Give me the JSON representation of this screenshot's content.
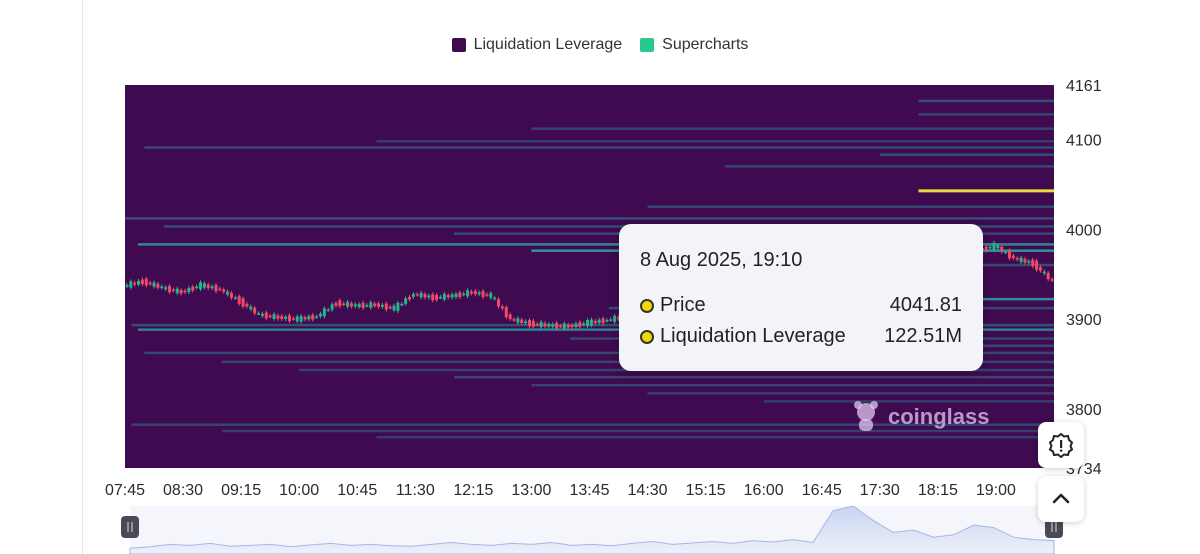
{
  "legend": [
    {
      "label": "Liquidation Leverage",
      "color": "#3f0a4f"
    },
    {
      "label": "Supercharts",
      "color": "#27c98c"
    }
  ],
  "tooltip": {
    "title": "8 Aug 2025, 19:10",
    "rows": [
      {
        "label": "Price",
        "value": "4041.81"
      },
      {
        "label": "Liquidation Leverage",
        "value": "122.51M"
      }
    ]
  },
  "watermark": "coinglass",
  "chart_data": {
    "type": "heatmap",
    "title": "",
    "ylim": [
      3734,
      4161
    ],
    "y_ticks": [
      "4161",
      "4100",
      "4000",
      "3900",
      "3800",
      "3734"
    ],
    "y_tick_values": [
      4161,
      4100,
      4000,
      3900,
      3800,
      3734
    ],
    "x_ticks": [
      "07:45",
      "08:30",
      "09:15",
      "10:00",
      "10:45",
      "11:30",
      "12:15",
      "13:00",
      "13:45",
      "14:30",
      "15:15",
      "16:00",
      "16:45",
      "17:30",
      "18:15",
      "19:00"
    ],
    "x_start": "07:45",
    "x_end": "19:45",
    "legend_position": "top-center",
    "colors": {
      "background": "#3f0a4f",
      "low": "#2f6e8c",
      "mid": "#2aa6a0",
      "high": "#f5e43a",
      "candle_up": "#26b58a",
      "candle_down": "#ef4a66"
    },
    "liquidation_levels": [
      {
        "price": 4143,
        "start": "18:00",
        "intensity": 0.6
      },
      {
        "price": 4128,
        "start": "18:00",
        "intensity": 0.4
      },
      {
        "price": 4112,
        "start": "13:00",
        "intensity": 0.35
      },
      {
        "price": 4098,
        "start": "11:00",
        "intensity": 0.3
      },
      {
        "price": 4091,
        "start": "08:00",
        "intensity": 0.5
      },
      {
        "price": 4083,
        "start": "17:30",
        "intensity": 0.55
      },
      {
        "price": 4070,
        "start": "15:30",
        "intensity": 0.4
      },
      {
        "price": 4043,
        "start": "18:00",
        "intensity": 1.0
      },
      {
        "price": 4025,
        "start": "14:30",
        "intensity": 0.4
      },
      {
        "price": 4012,
        "start": "07:45",
        "intensity": 0.55
      },
      {
        "price": 4003,
        "start": "08:15",
        "intensity": 0.5
      },
      {
        "price": 3995,
        "start": "12:00",
        "intensity": 0.45
      },
      {
        "price": 3983,
        "start": "07:55",
        "intensity": 0.75
      },
      {
        "price": 3976,
        "start": "13:00",
        "intensity": 0.9
      },
      {
        "price": 3960,
        "start": "16:00",
        "intensity": 0.5
      },
      {
        "price": 3922,
        "start": "17:40",
        "intensity": 0.85
      },
      {
        "price": 3912,
        "start": "14:00",
        "intensity": 0.5
      },
      {
        "price": 3893,
        "start": "07:50",
        "intensity": 0.55
      },
      {
        "price": 3888,
        "start": "07:55",
        "intensity": 0.7
      },
      {
        "price": 3878,
        "start": "13:30",
        "intensity": 0.4
      },
      {
        "price": 3870,
        "start": "16:00",
        "intensity": 0.45
      },
      {
        "price": 3862,
        "start": "08:00",
        "intensity": 0.45
      },
      {
        "price": 3852,
        "start": "09:00",
        "intensity": 0.4
      },
      {
        "price": 3843,
        "start": "10:00",
        "intensity": 0.35
      },
      {
        "price": 3835,
        "start": "12:00",
        "intensity": 0.4
      },
      {
        "price": 3826,
        "start": "13:00",
        "intensity": 0.35
      },
      {
        "price": 3817,
        "start": "14:30",
        "intensity": 0.3
      },
      {
        "price": 3808,
        "start": "16:00",
        "intensity": 0.3
      },
      {
        "price": 3782,
        "start": "07:50",
        "intensity": 0.4
      },
      {
        "price": 3775,
        "start": "09:00",
        "intensity": 0.3
      },
      {
        "price": 3768,
        "start": "11:00",
        "intensity": 0.25
      }
    ],
    "price_series": {
      "times": [
        "07:45",
        "08:00",
        "08:15",
        "08:30",
        "08:45",
        "09:00",
        "09:15",
        "09:30",
        "09:45",
        "10:00",
        "10:15",
        "10:30",
        "10:45",
        "11:00",
        "11:15",
        "11:30",
        "11:45",
        "12:00",
        "12:15",
        "12:30",
        "12:45",
        "13:00",
        "13:15",
        "13:30",
        "13:45",
        "14:00",
        "14:15",
        "18:30",
        "18:45",
        "19:00",
        "19:15",
        "19:30",
        "19:45"
      ],
      "prices": [
        3937,
        3942,
        3935,
        3930,
        3938,
        3933,
        3920,
        3905,
        3902,
        3900,
        3903,
        3918,
        3915,
        3916,
        3912,
        3928,
        3924,
        3926,
        3930,
        3926,
        3900,
        3895,
        3893,
        3892,
        3896,
        3899,
        3903,
        3968,
        3975,
        3982,
        3968,
        3962,
        3942
      ]
    },
    "navigator_volume": [
      0.12,
      0.15,
      0.2,
      0.18,
      0.22,
      0.16,
      0.18,
      0.2,
      0.15,
      0.19,
      0.22,
      0.18,
      0.2,
      0.17,
      0.16,
      0.2,
      0.24,
      0.2,
      0.18,
      0.22,
      0.2,
      0.24,
      0.18,
      0.2,
      0.17,
      0.22,
      0.26,
      0.2,
      0.23,
      0.26,
      0.22,
      0.28,
      0.25,
      0.3,
      0.24,
      0.9,
      1.0,
      0.7,
      0.45,
      0.5,
      0.35,
      0.4,
      0.6,
      0.55,
      0.35,
      0.3,
      0.28
    ]
  }
}
